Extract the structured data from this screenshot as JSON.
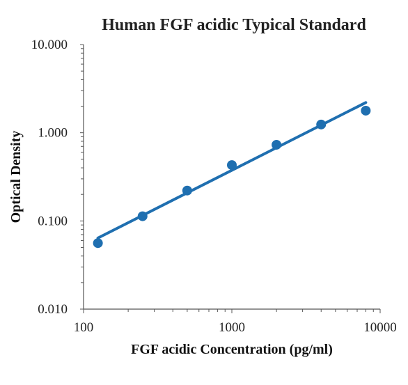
{
  "chart_data": {
    "type": "scatter",
    "title": "Human FGF acidic Typical Standard",
    "xlabel": "FGF acidic Concentration (pg/ml)",
    "ylabel": "Optical Density",
    "x_scale": "log",
    "y_scale": "log",
    "xlim": [
      100,
      10000
    ],
    "ylim": [
      0.01,
      10
    ],
    "x_ticks": [
      "100",
      "1000",
      "10000"
    ],
    "y_ticks": [
      "0.010",
      "0.100",
      "1.000",
      "10.000"
    ],
    "grid": false,
    "legend": "none",
    "series": [
      {
        "x": [
          125,
          250,
          500,
          1000,
          2000,
          4000,
          8000
        ],
        "y": [
          0.056,
          0.113,
          0.221,
          0.43,
          0.73,
          1.24,
          1.78
        ],
        "marker": "circle"
      }
    ],
    "trendline": {
      "type": "power",
      "x": [
        125,
        8000
      ],
      "y": [
        0.064,
        2.2
      ]
    },
    "colors": {
      "series": "#1f6fb0",
      "trendline": "#1f6fb0",
      "axis": "#555555"
    }
  }
}
